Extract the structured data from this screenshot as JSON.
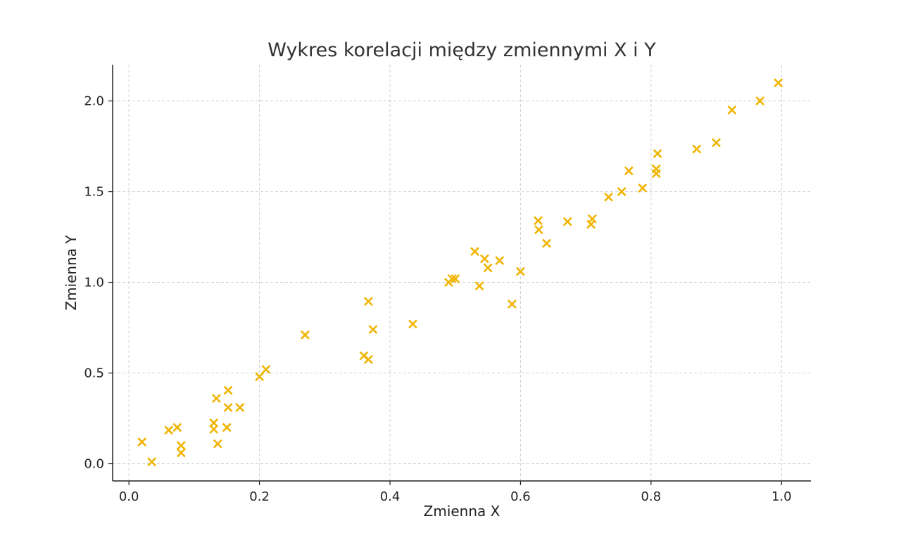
{
  "chart_data": {
    "type": "scatter",
    "title": "Wykres korelacji między zmiennymi X i Y",
    "xlabel": "Zmienna X",
    "ylabel": "Zmienna Y",
    "xlim": [
      -0.025,
      1.045
    ],
    "ylim": [
      -0.095,
      2.2
    ],
    "xticks": [
      0.0,
      0.2,
      0.4,
      0.6,
      0.8,
      1.0
    ],
    "xtick_labels": [
      "0.0",
      "0.2",
      "0.4",
      "0.6",
      "0.8",
      "1.0"
    ],
    "yticks": [
      0.0,
      0.5,
      1.0,
      1.5,
      2.0
    ],
    "ytick_labels": [
      "0.0",
      "0.5",
      "1.0",
      "1.5",
      "2.0"
    ],
    "grid": true,
    "marker": "x",
    "color": "#f0b400",
    "series": [
      {
        "points": [
          [
            0.02,
            0.12
          ],
          [
            0.035,
            0.01
          ],
          [
            0.061,
            0.185
          ],
          [
            0.074,
            0.2
          ],
          [
            0.08,
            0.1
          ],
          [
            0.08,
            0.06
          ],
          [
            0.13,
            0.19
          ],
          [
            0.13,
            0.225
          ],
          [
            0.134,
            0.36
          ],
          [
            0.136,
            0.11
          ],
          [
            0.15,
            0.2
          ],
          [
            0.152,
            0.31
          ],
          [
            0.152,
            0.405
          ],
          [
            0.17,
            0.31
          ],
          [
            0.2,
            0.48
          ],
          [
            0.21,
            0.52
          ],
          [
            0.27,
            0.71
          ],
          [
            0.36,
            0.595
          ],
          [
            0.367,
            0.575
          ],
          [
            0.367,
            0.895
          ],
          [
            0.374,
            0.74
          ],
          [
            0.435,
            0.77
          ],
          [
            0.49,
            1.0
          ],
          [
            0.495,
            1.02
          ],
          [
            0.5,
            1.02
          ],
          [
            0.53,
            1.17
          ],
          [
            0.537,
            0.98
          ],
          [
            0.545,
            1.13
          ],
          [
            0.55,
            1.08
          ],
          [
            0.568,
            1.12
          ],
          [
            0.587,
            0.88
          ],
          [
            0.6,
            1.06
          ],
          [
            0.627,
            1.34
          ],
          [
            0.628,
            1.29
          ],
          [
            0.64,
            1.215
          ],
          [
            0.672,
            1.335
          ],
          [
            0.708,
            1.32
          ],
          [
            0.71,
            1.35
          ],
          [
            0.735,
            1.47
          ],
          [
            0.755,
            1.5
          ],
          [
            0.766,
            1.615
          ],
          [
            0.787,
            1.52
          ],
          [
            0.808,
            1.6
          ],
          [
            0.808,
            1.625
          ],
          [
            0.81,
            1.71
          ],
          [
            0.87,
            1.735
          ],
          [
            0.9,
            1.77
          ],
          [
            0.924,
            1.95
          ],
          [
            0.967,
            2.0
          ],
          [
            0.995,
            2.1
          ]
        ]
      }
    ]
  }
}
